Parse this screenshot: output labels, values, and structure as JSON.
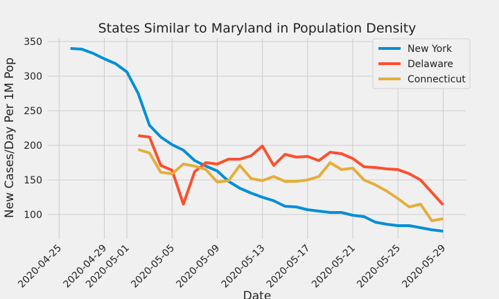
{
  "chart_data": {
    "type": "line",
    "title": "States Similar to Maryland in Population Density",
    "xlabel": "Date",
    "ylabel": "New Cases/Day Per 1M Pop",
    "xlim": [
      "2020-04-24",
      "2020-05-31"
    ],
    "ylim": [
      65,
      355
    ],
    "grid": true,
    "legend_position": "top-right",
    "x_ticks": [
      "2020-04-25",
      "2020-04-29",
      "2020-05-01",
      "2020-05-05",
      "2020-05-09",
      "2020-05-13",
      "2020-05-17",
      "2020-05-21",
      "2020-05-25",
      "2020-05-29"
    ],
    "y_ticks": [
      100,
      150,
      200,
      250,
      300,
      350
    ],
    "series": [
      {
        "name": "New York",
        "color": "#008fd5",
        "x": [
          "2020-04-26",
          "2020-04-27",
          "2020-04-28",
          "2020-04-29",
          "2020-04-30",
          "2020-05-01",
          "2020-05-02",
          "2020-05-03",
          "2020-05-04",
          "2020-05-05",
          "2020-05-06",
          "2020-05-07",
          "2020-05-08",
          "2020-05-09",
          "2020-05-10",
          "2020-05-11",
          "2020-05-12",
          "2020-05-13",
          "2020-05-14",
          "2020-05-15",
          "2020-05-16",
          "2020-05-17",
          "2020-05-18",
          "2020-05-19",
          "2020-05-20",
          "2020-05-21",
          "2020-05-22",
          "2020-05-23",
          "2020-05-24",
          "2020-05-25",
          "2020-05-26",
          "2020-05-27",
          "2020-05-28",
          "2020-05-29"
        ],
        "values": [
          340,
          339,
          333,
          325,
          318,
          306,
          275,
          229,
          212,
          201,
          193,
          178,
          170,
          163,
          148,
          138,
          131,
          125,
          120,
          112,
          111,
          107,
          105,
          103,
          103,
          99,
          97,
          89,
          86,
          84,
          84,
          81,
          78,
          76
        ]
      },
      {
        "name": "Delaware",
        "color": "#fc4f30",
        "x": [
          "2020-05-02",
          "2020-05-03",
          "2020-05-04",
          "2020-05-05",
          "2020-05-06",
          "2020-05-07",
          "2020-05-08",
          "2020-05-09",
          "2020-05-10",
          "2020-05-11",
          "2020-05-12",
          "2020-05-13",
          "2020-05-14",
          "2020-05-15",
          "2020-05-16",
          "2020-05-17",
          "2020-05-18",
          "2020-05-19",
          "2020-05-20",
          "2020-05-21",
          "2020-05-22",
          "2020-05-23",
          "2020-05-24",
          "2020-05-25",
          "2020-05-26",
          "2020-05-27",
          "2020-05-28",
          "2020-05-29"
        ],
        "values": [
          214,
          212,
          171,
          164,
          115,
          162,
          175,
          173,
          180,
          180,
          185,
          199,
          171,
          187,
          183,
          184,
          178,
          190,
          188,
          181,
          169,
          168,
          166,
          165,
          159,
          150,
          132,
          114
        ]
      },
      {
        "name": "Connecticut",
        "color": "#e5ae38",
        "x": [
          "2020-05-02",
          "2020-05-03",
          "2020-05-04",
          "2020-05-05",
          "2020-05-06",
          "2020-05-07",
          "2020-05-08",
          "2020-05-09",
          "2020-05-10",
          "2020-05-11",
          "2020-05-12",
          "2020-05-13",
          "2020-05-14",
          "2020-05-15",
          "2020-05-16",
          "2020-05-17",
          "2020-05-18",
          "2020-05-19",
          "2020-05-20",
          "2020-05-21",
          "2020-05-22",
          "2020-05-23",
          "2020-05-24",
          "2020-05-25",
          "2020-05-26",
          "2020-05-27",
          "2020-05-28",
          "2020-05-29"
        ],
        "values": [
          194,
          189,
          161,
          159,
          173,
          170,
          165,
          147,
          149,
          171,
          152,
          149,
          155,
          148,
          148,
          150,
          155,
          175,
          165,
          167,
          150,
          143,
          134,
          123,
          111,
          115,
          91,
          94
        ]
      }
    ]
  }
}
